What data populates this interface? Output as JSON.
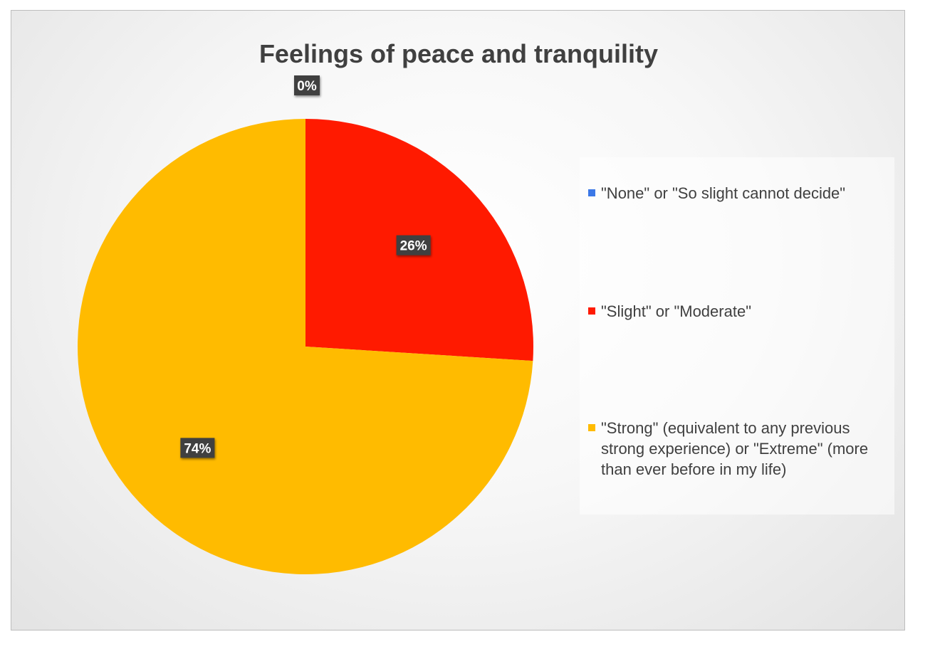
{
  "chart_data": {
    "type": "pie",
    "title": "Feelings of peace and tranquility",
    "categories": [
      "\"None\" or \"So slight cannot decide\"",
      "\"Slight\" or \"Moderate\"",
      "\"Strong\" (equivalent to any previous strong experience) or \"Extreme\" (more than ever before in my life)"
    ],
    "values": [
      0,
      26,
      74
    ],
    "data_labels": [
      "0%",
      "26%",
      "74%"
    ],
    "colors": [
      "#3b78e7",
      "#ff1a00",
      "#ffbb00"
    ],
    "legend_position": "right"
  }
}
